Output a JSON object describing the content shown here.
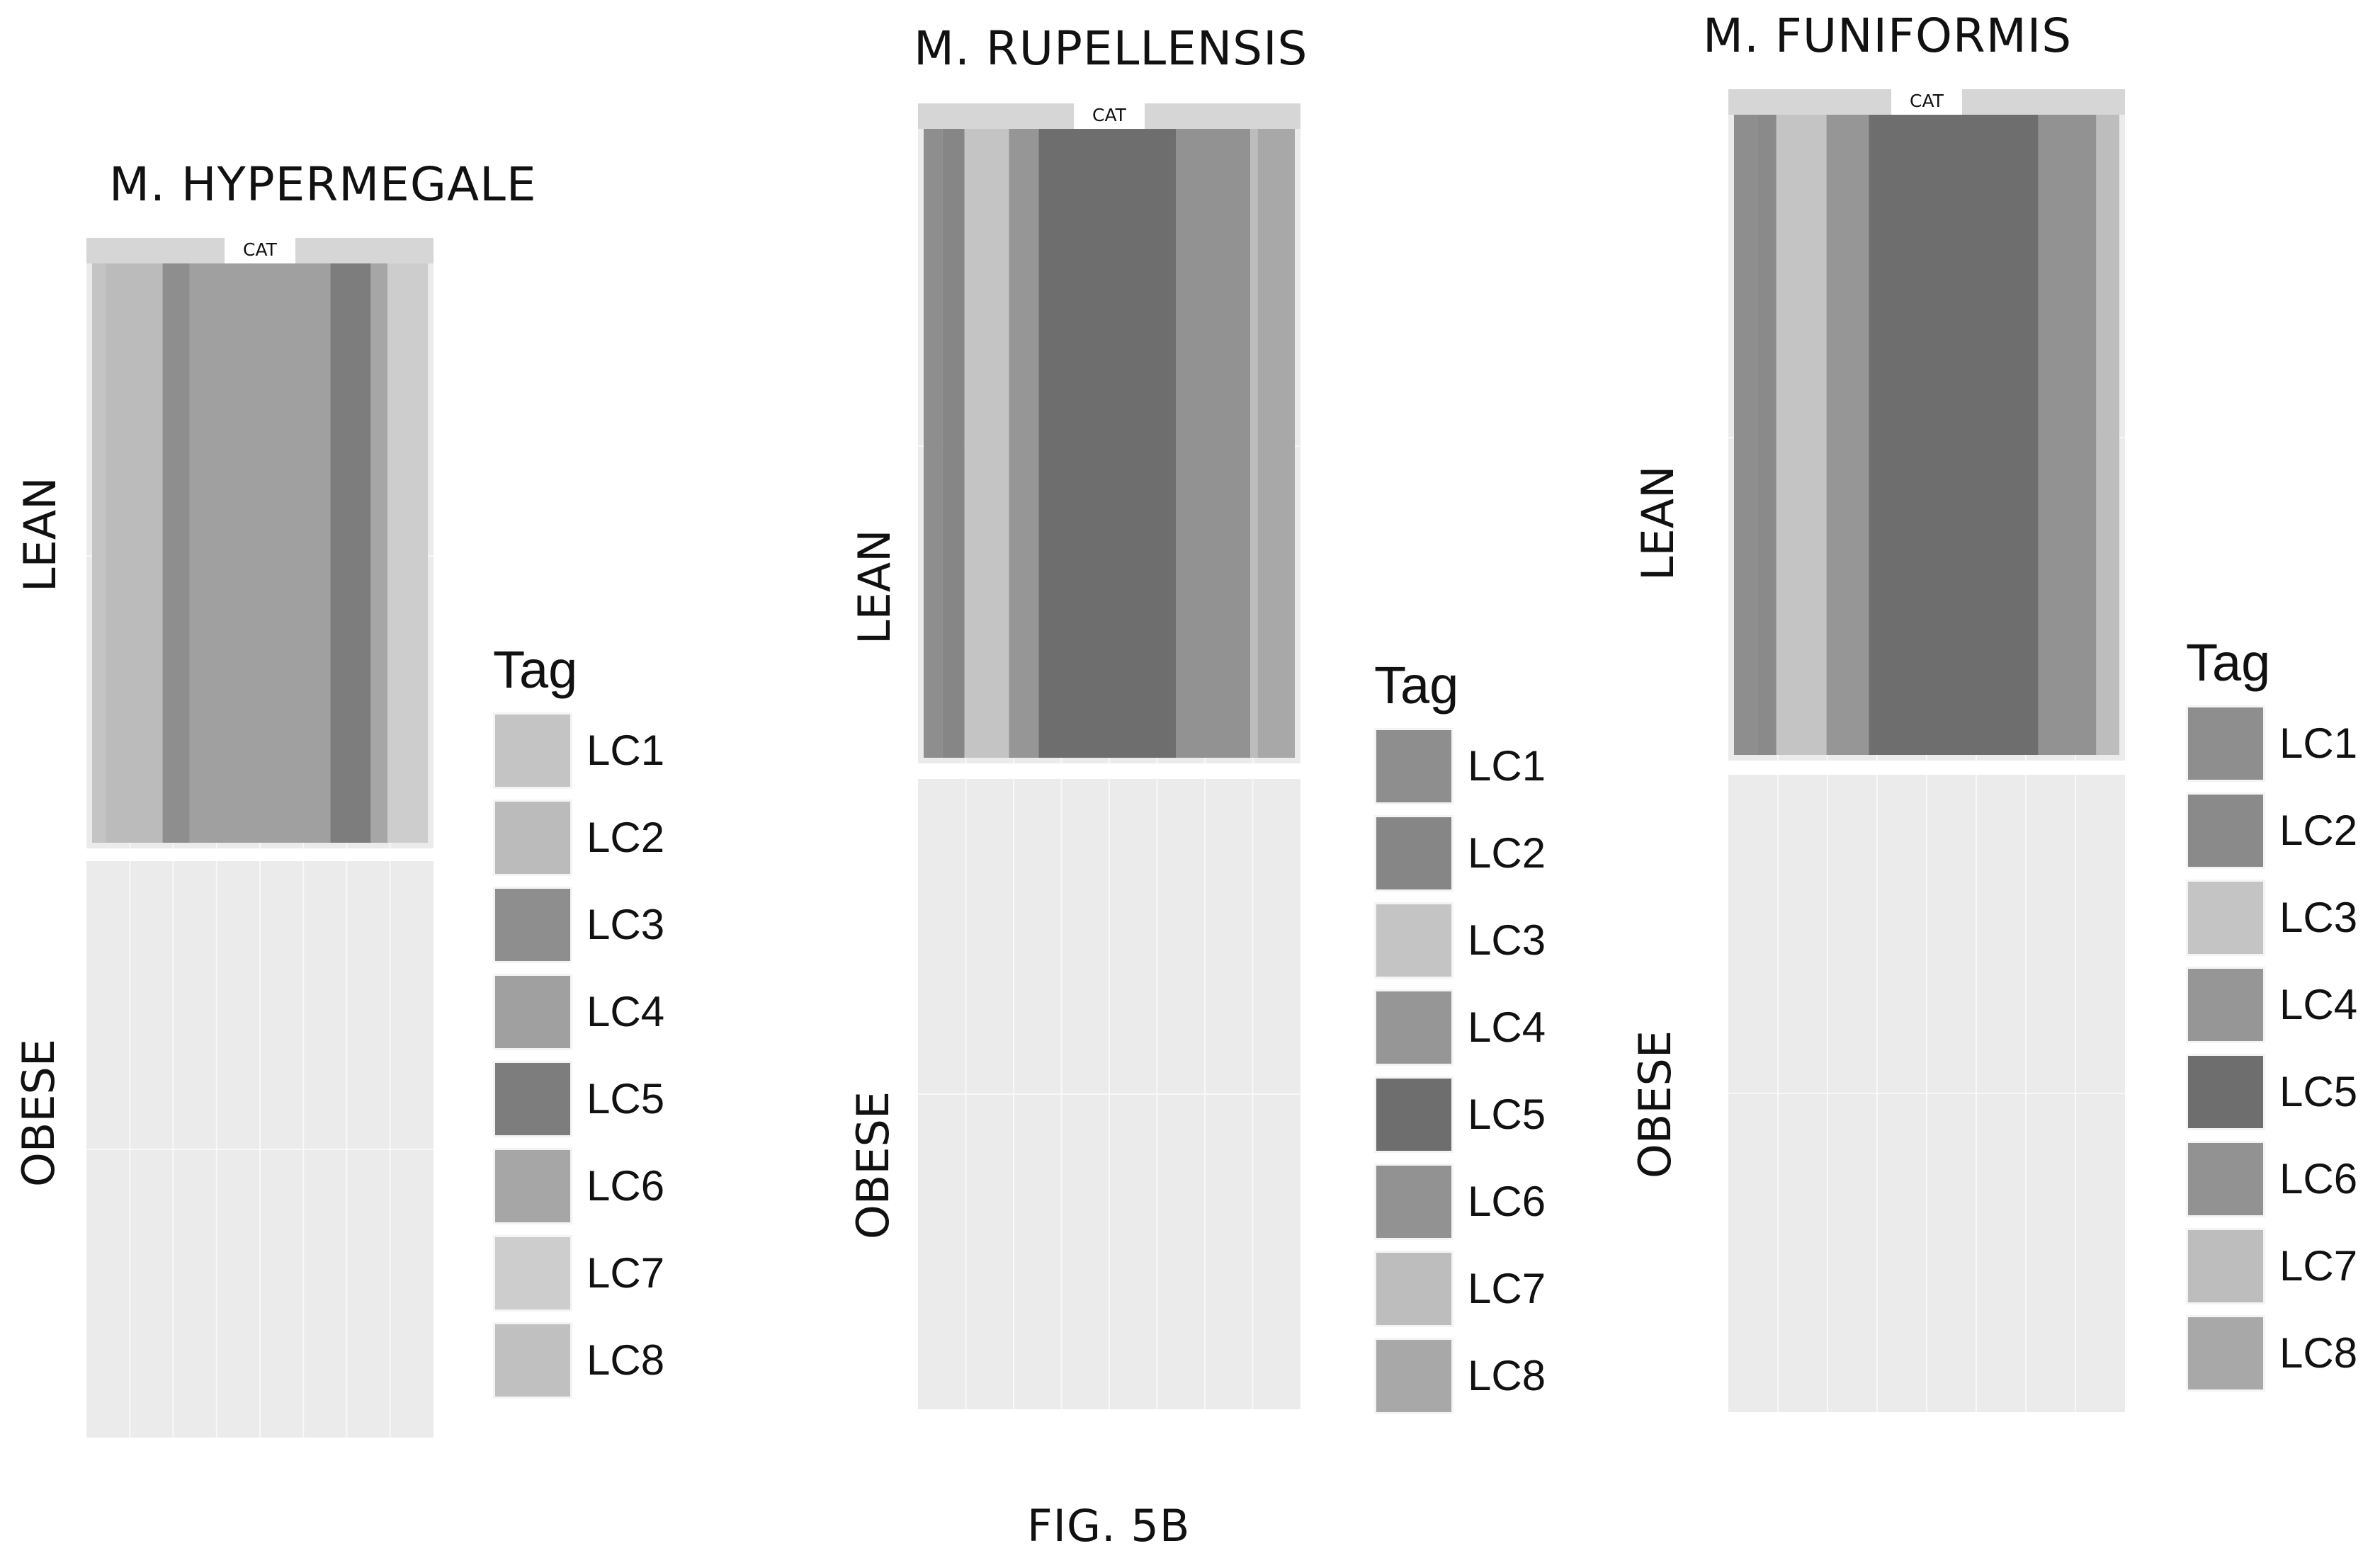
{
  "figure": {
    "caption": "FIG. 5B"
  },
  "chart_data": [
    {
      "type": "bar",
      "title": "M. HYPERMEGALE",
      "strip_label": "CAT",
      "rows": [
        "LEAN",
        "OBESE"
      ],
      "legend_title": "Tag",
      "legend": [
        "LC1",
        "LC2",
        "LC3",
        "LC4",
        "LC5",
        "LC6",
        "LC7",
        "LC8"
      ],
      "colors": [
        "#c4c4c4",
        "#bbbbbb",
        "#8e8e8e",
        "#a0a0a0",
        "#7d7d7d",
        "#a6a6a6",
        "#cdcdcd",
        "#c0c0c0"
      ],
      "stacks": {
        "LEAN": [
          0.04,
          0.17,
          0.08,
          0.42,
          0.12,
          0.05,
          0.12,
          0.0
        ],
        "OBESE": [
          0,
          0,
          0,
          0,
          0,
          0,
          0,
          0
        ]
      }
    },
    {
      "type": "bar",
      "title": "M. RUPELLENSIS",
      "strip_label": "CAT",
      "rows": [
        "LEAN",
        "OBESE"
      ],
      "legend_title": "Tag",
      "legend": [
        "LC1",
        "LC2",
        "LC3",
        "LC4",
        "LC5",
        "LC6",
        "LC7",
        "LC8"
      ],
      "colors": [
        "#8e8e8e",
        "#868686",
        "#c4c4c4",
        "#969696",
        "#6e6e6e",
        "#929292",
        "#bdbdbd",
        "#a8a8a8"
      ],
      "stacks": {
        "LEAN": [
          0.05,
          0.06,
          0.12,
          0.08,
          0.37,
          0.2,
          0.02,
          0.1
        ],
        "OBESE": [
          0,
          0,
          0,
          0,
          0,
          0,
          0,
          0
        ]
      }
    },
    {
      "type": "bar",
      "title": "M. FUNIFORMIS",
      "strip_label": "CAT",
      "rows": [
        "LEAN",
        "OBESE"
      ],
      "legend_title": "Tag",
      "legend": [
        "LC1",
        "LC2",
        "LC3",
        "LC4",
        "LC5",
        "LC6",
        "LC7",
        "LC8"
      ],
      "colors": [
        "#8e8e8e",
        "#8a8a8a",
        "#c4c4c4",
        "#969696",
        "#6e6e6e",
        "#929292",
        "#bdbdbd",
        "#a8a8a8"
      ],
      "stacks": {
        "LEAN": [
          0.06,
          0.05,
          0.13,
          0.11,
          0.44,
          0.15,
          0.06,
          0.0
        ],
        "OBESE": [
          0,
          0,
          0,
          0,
          0,
          0,
          0,
          0
        ]
      }
    }
  ]
}
